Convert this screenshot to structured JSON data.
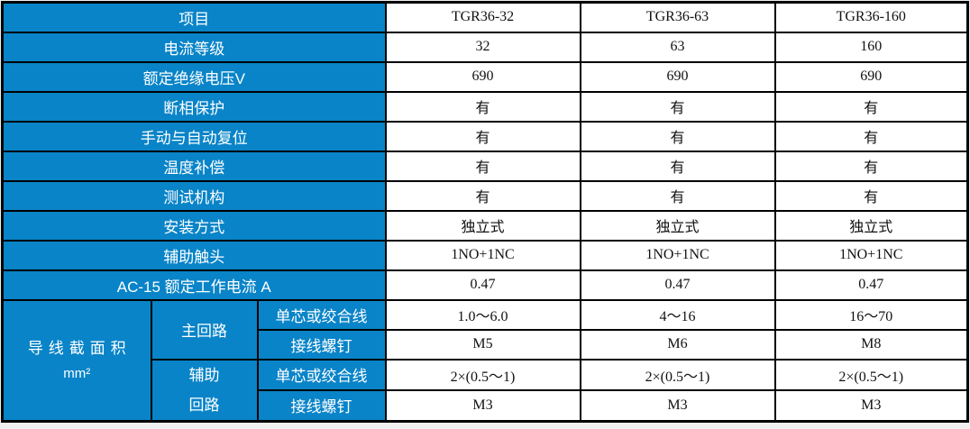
{
  "colors": {
    "header_bg": "#0984C8",
    "header_text": "#FFFFFF",
    "value_text": "#111111",
    "border": "#000000",
    "page_bg": "#F0F0F0"
  },
  "table": {
    "rows": [
      {
        "label": "项目",
        "values": [
          "TGR36-32",
          "TGR36-63",
          "TGR36-160"
        ]
      },
      {
        "label": "电流等级",
        "values": [
          "32",
          "63",
          "160"
        ]
      },
      {
        "label": "额定绝缘电压V",
        "values": [
          "690",
          "690",
          "690"
        ]
      },
      {
        "label": "断相保护",
        "values": [
          "有",
          "有",
          "有"
        ]
      },
      {
        "label": "手动与自动复位",
        "values": [
          "有",
          "有",
          "有"
        ]
      },
      {
        "label": "温度补偿",
        "values": [
          "有",
          "有",
          "有"
        ]
      },
      {
        "label": "测试机构",
        "values": [
          "有",
          "有",
          "有"
        ]
      },
      {
        "label": "安装方式",
        "values": [
          "独立式",
          "独立式",
          "独立式"
        ]
      },
      {
        "label": "辅助触头",
        "values": [
          "1NO+1NC",
          "1NO+1NC",
          "1NO+1NC"
        ]
      },
      {
        "label": "AC-15 额定工作电流 A",
        "values": [
          "0.47",
          "0.47",
          "0.47"
        ]
      }
    ],
    "wire_section": {
      "group_title_line1": "导线截面积",
      "group_title_line2": "mm²",
      "main_circuit_label": "主回路",
      "aux_circuit_label_line1": "辅助",
      "aux_circuit_label_line2": "回路",
      "rows": [
        {
          "label": "单芯或绞合线",
          "values": [
            "1.0～6.0",
            "4～16",
            "16～70"
          ]
        },
        {
          "label": "接线螺钉",
          "values": [
            "M5",
            "M6",
            "M8"
          ]
        },
        {
          "label": "单芯或绞合线",
          "values": [
            "2×(0.5～1)",
            "2×(0.5～1)",
            "2×(0.5～1)"
          ]
        },
        {
          "label": "接线螺钉",
          "values": [
            "M3",
            "M3",
            "M3"
          ]
        }
      ]
    }
  }
}
